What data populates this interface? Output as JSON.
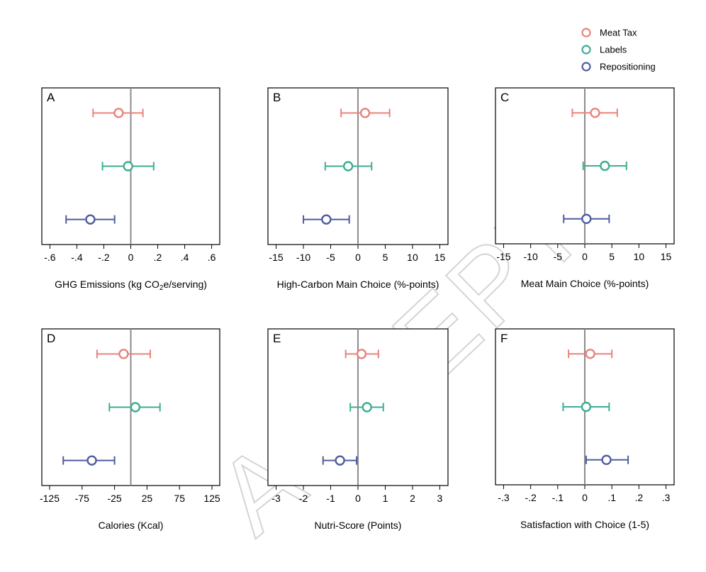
{
  "watermark": "ACCEPTED MANUSCRIPT",
  "legend": {
    "position": "top-right",
    "entries": [
      {
        "name": "Meat Tax",
        "color": "#e8837c"
      },
      {
        "name": "Labels",
        "color": "#3eae93"
      },
      {
        "name": "Repositioning",
        "color": "#4f5ca0"
      }
    ]
  },
  "chart_data": [
    {
      "type": "scatter",
      "title": "A",
      "xlabel_pre": "GHG Emissions (kg CO",
      "xlabel_sub": "2",
      "xlabel_post": "e/serving)",
      "xlim": [
        -0.66,
        0.66
      ],
      "ticks": [
        -0.6,
        -0.4,
        -0.2,
        0,
        0.2,
        0.4,
        0.6
      ],
      "tick_labels": [
        "-.6",
        "-.4",
        "-.2",
        "0",
        ".2",
        ".4",
        ".6"
      ],
      "series": [
        {
          "name": "Meat Tax",
          "estimate": -0.09,
          "ci": [
            -0.28,
            0.09
          ]
        },
        {
          "name": "Labels",
          "estimate": -0.02,
          "ci": [
            -0.21,
            0.17
          ]
        },
        {
          "name": "Repositioning",
          "estimate": -0.3,
          "ci": [
            -0.48,
            -0.12
          ]
        }
      ]
    },
    {
      "type": "scatter",
      "title": "B",
      "xlabel": "High-Carbon Main Choice (%-points)",
      "xlim": [
        -16.5,
        16.5
      ],
      "ticks": [
        -15,
        -10,
        -5,
        0,
        5,
        10,
        15
      ],
      "tick_labels": [
        "-15",
        "-10",
        "-5",
        "0",
        "5",
        "10",
        "15"
      ],
      "series": [
        {
          "name": "Meat Tax",
          "estimate": 1.3,
          "ci": [
            -3.1,
            5.8
          ]
        },
        {
          "name": "Labels",
          "estimate": -1.8,
          "ci": [
            -6.0,
            2.5
          ]
        },
        {
          "name": "Repositioning",
          "estimate": -5.8,
          "ci": [
            -10.0,
            -1.6
          ]
        }
      ]
    },
    {
      "type": "scatter",
      "title": "C",
      "xlabel": "Meat Main Choice (%-points)",
      "xlim": [
        -16.5,
        16.5
      ],
      "ticks": [
        -15,
        -10,
        -5,
        0,
        5,
        10,
        15
      ],
      "tick_labels": [
        "-15",
        "-10",
        "-5",
        "0",
        "5",
        "10",
        "15"
      ],
      "series": [
        {
          "name": "Meat Tax",
          "estimate": 1.9,
          "ci": [
            -2.3,
            6.0
          ]
        },
        {
          "name": "Labels",
          "estimate": 3.7,
          "ci": [
            -0.3,
            7.7
          ]
        },
        {
          "name": "Repositioning",
          "estimate": 0.3,
          "ci": [
            -3.9,
            4.5
          ]
        }
      ]
    },
    {
      "type": "scatter",
      "title": "D",
      "xlabel": "Calories (Kcal)",
      "xlim": [
        -137,
        137
      ],
      "ticks": [
        -125,
        -75,
        -25,
        25,
        75,
        125
      ],
      "tick_labels": [
        "-125",
        "-75",
        "-25",
        "25",
        "75",
        "125"
      ],
      "series": [
        {
          "name": "Meat Tax",
          "estimate": -11,
          "ci": [
            -52,
            30
          ]
        },
        {
          "name": "Labels",
          "estimate": 7,
          "ci": [
            -33,
            45
          ]
        },
        {
          "name": "Repositioning",
          "estimate": -60,
          "ci": [
            -104,
            -25
          ]
        }
      ]
    },
    {
      "type": "scatter",
      "title": "E",
      "xlabel": "Nutri-Score (Points)",
      "xlim": [
        -3.3,
        3.3
      ],
      "ticks": [
        -3,
        -2,
        -1,
        0,
        1,
        2,
        3
      ],
      "tick_labels": [
        "-3",
        "-2",
        "-1",
        "0",
        "1",
        "2",
        "3"
      ],
      "series": [
        {
          "name": "Meat Tax",
          "estimate": 0.13,
          "ci": [
            -0.45,
            0.75
          ]
        },
        {
          "name": "Labels",
          "estimate": 0.33,
          "ci": [
            -0.28,
            0.93
          ]
        },
        {
          "name": "Repositioning",
          "estimate": -0.66,
          "ci": [
            -1.28,
            -0.05
          ]
        }
      ]
    },
    {
      "type": "scatter",
      "title": "F",
      "xlabel": "Satisfaction with Choice (1-5)",
      "xlim": [
        -0.33,
        0.33
      ],
      "ticks": [
        -0.3,
        -0.2,
        -0.1,
        0,
        0.1,
        0.2,
        0.3
      ],
      "tick_labels": [
        "-.3",
        "-.2",
        "-.1",
        "0",
        ".1",
        ".2",
        ".3"
      ],
      "series": [
        {
          "name": "Meat Tax",
          "estimate": 0.02,
          "ci": [
            -0.06,
            0.1
          ]
        },
        {
          "name": "Labels",
          "estimate": 0.005,
          "ci": [
            -0.08,
            0.09
          ]
        },
        {
          "name": "Repositioning",
          "estimate": 0.08,
          "ci": [
            0.005,
            0.16
          ]
        }
      ]
    }
  ]
}
